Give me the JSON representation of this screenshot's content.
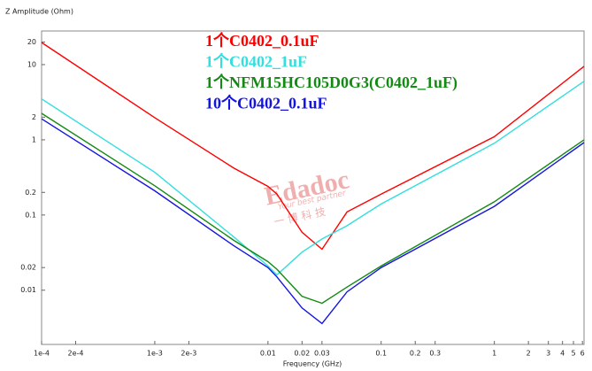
{
  "chart_data": {
    "type": "line",
    "y_label": "Z Amplitude (Ohm)",
    "x_label": "Frequency (GHz)",
    "xscale": "log",
    "yscale": "log",
    "grid": false,
    "x": [
      0.0001,
      0.001,
      0.005,
      0.01,
      0.012,
      0.02,
      0.03,
      0.05,
      0.1,
      1,
      6.2
    ],
    "series": [
      {
        "name": "1个C0402_0.1uF",
        "color": "#ff0000",
        "values": [
          19.7,
          1.97,
          0.42,
          0.24,
          0.19,
          0.059,
          0.035,
          0.11,
          0.19,
          1.1,
          9.5
        ]
      },
      {
        "name": "1个C0402_1uF",
        "color": "#33dede",
        "values": [
          3.5,
          0.37,
          0.051,
          0.021,
          0.016,
          0.032,
          0.048,
          0.072,
          0.14,
          0.9,
          6
        ]
      },
      {
        "name": "1个NFM15HC105D0G3(C0402_1uF)",
        "color": "#138a13",
        "values": [
          2.25,
          0.245,
          0.046,
          0.024,
          0.019,
          0.0083,
          0.0067,
          0.011,
          0.021,
          0.15,
          1.0
        ]
      },
      {
        "name": "10个C0402_0.1uF",
        "color": "#1414e0",
        "values": [
          1.9,
          0.21,
          0.039,
          0.02,
          0.015,
          0.0058,
          0.0036,
          0.0095,
          0.02,
          0.13,
          0.92
        ]
      }
    ],
    "xlim": [
      0.0001,
      6.2
    ],
    "ylim": [
      0.0019,
      28
    ],
    "xticks": [
      {
        "value": 0.0001,
        "label": "1e-4"
      },
      {
        "value": 0.0002,
        "label": "2e-4"
      },
      {
        "value": 0.001,
        "label": "1e-3"
      },
      {
        "value": 0.002,
        "label": "2e-3"
      },
      0.01,
      0.02,
      0.03,
      0.1,
      0.2,
      0.3,
      1,
      2,
      3,
      4,
      5,
      6
    ],
    "yticks": [
      20,
      10,
      2,
      1,
      0.2,
      0.1,
      0.02,
      0.01
    ],
    "watermark": {
      "brand": "Edadoc",
      "slogan": "Your best partner",
      "chinese": "一 博 科 技"
    }
  }
}
